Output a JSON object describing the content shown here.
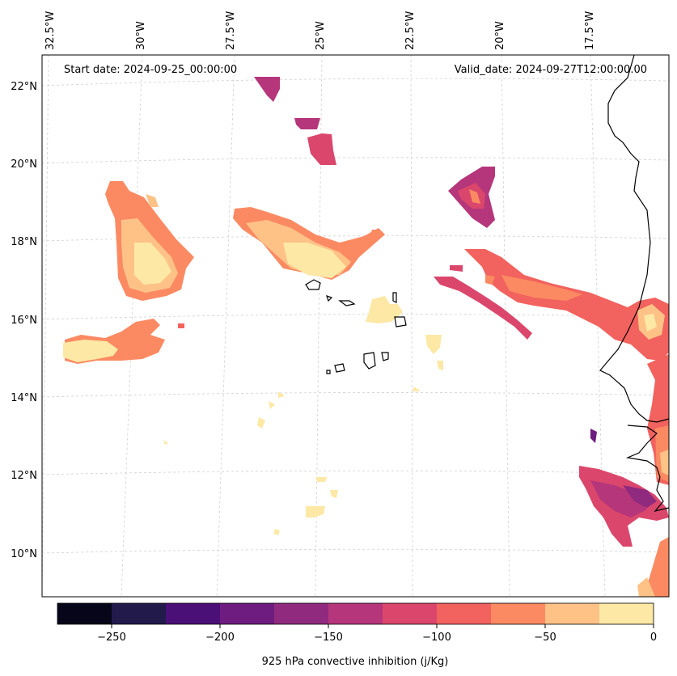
{
  "header": {
    "start_date": "Start date: 2024-09-25_00:00:00",
    "valid_date": "Valid_date: 2024-09-27T12:00:00.00"
  },
  "longitude_labels": [
    "32.5°W",
    "30°W",
    "27.5°W",
    "25°W",
    "22.5°W",
    "20°W",
    "17.5°W"
  ],
  "latitude_labels": [
    "22°N",
    "20°N",
    "18°N",
    "16°N",
    "14°N",
    "12°N",
    "10°N"
  ],
  "colorbar": {
    "label": "925 hPa convective inhibition (j/Kg)",
    "tick_labels": [
      "−250",
      "−200",
      "−150",
      "−100",
      "−50",
      "0"
    ],
    "min": -275,
    "max": 0,
    "step": 25,
    "colors": [
      "#06051a",
      "#231a4c",
      "#4b0f78",
      "#6e1c80",
      "#902a7f",
      "#b5367a",
      "#db476c",
      "#f2625e",
      "#fb8a62",
      "#fec287",
      "#fde8a6"
    ]
  },
  "colors": {
    "coastline": "#000000",
    "gridline": "#d0d0d0",
    "frame": "#000000"
  }
}
